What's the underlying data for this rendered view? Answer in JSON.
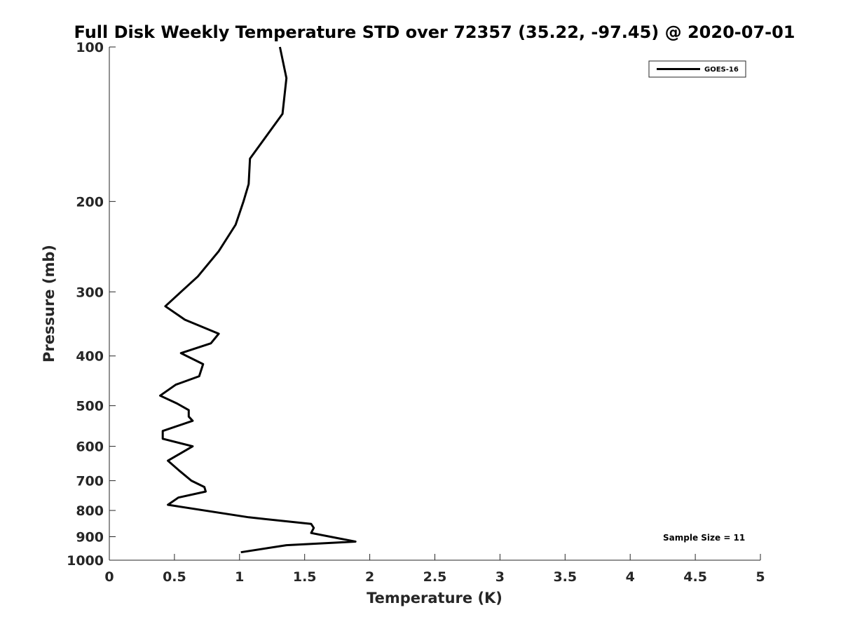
{
  "chart_data": {
    "type": "line",
    "title": "Full Disk Weekly Temperature STD over 72357 (35.22, -97.45) @ 2020-07-01",
    "xlabel": "Temperature (K)",
    "ylabel": "Pressure (mb)",
    "xlim": [
      0,
      5
    ],
    "ylim": [
      1000,
      100
    ],
    "yscale": "log",
    "xticks": [
      0,
      0.5,
      1,
      1.5,
      2,
      2.5,
      3,
      3.5,
      4,
      4.5,
      5
    ],
    "xtick_labels": [
      "0",
      "0.5",
      "1",
      "1.5",
      "2",
      "2.5",
      "3",
      "3.5",
      "4",
      "4.5",
      "5"
    ],
    "yticks": [
      100,
      200,
      300,
      400,
      500,
      600,
      700,
      800,
      900,
      1000
    ],
    "ytick_labels": [
      "100",
      "200",
      "300",
      "400",
      "500",
      "600",
      "700",
      "800",
      "900",
      "1000"
    ],
    "legend": {
      "location": "top-right",
      "entries": [
        "GOES-16"
      ]
    },
    "annotation": "Sample Size = 11",
    "series": [
      {
        "name": "GOES-16",
        "color": "#000000",
        "points": [
          {
            "x": 1.31,
            "p": 100
          },
          {
            "x": 1.36,
            "p": 115
          },
          {
            "x": 1.33,
            "p": 135
          },
          {
            "x": 1.08,
            "p": 165
          },
          {
            "x": 1.07,
            "p": 185
          },
          {
            "x": 1.03,
            "p": 200
          },
          {
            "x": 0.97,
            "p": 222
          },
          {
            "x": 0.84,
            "p": 250
          },
          {
            "x": 0.68,
            "p": 280
          },
          {
            "x": 0.55,
            "p": 300
          },
          {
            "x": 0.43,
            "p": 320
          },
          {
            "x": 0.58,
            "p": 340
          },
          {
            "x": 0.84,
            "p": 362
          },
          {
            "x": 0.78,
            "p": 378
          },
          {
            "x": 0.55,
            "p": 395
          },
          {
            "x": 0.72,
            "p": 415
          },
          {
            "x": 0.69,
            "p": 438
          },
          {
            "x": 0.51,
            "p": 455
          },
          {
            "x": 0.39,
            "p": 478
          },
          {
            "x": 0.52,
            "p": 495
          },
          {
            "x": 0.61,
            "p": 510
          },
          {
            "x": 0.61,
            "p": 525
          },
          {
            "x": 0.64,
            "p": 535
          },
          {
            "x": 0.41,
            "p": 560
          },
          {
            "x": 0.41,
            "p": 580
          },
          {
            "x": 0.64,
            "p": 600
          },
          {
            "x": 0.45,
            "p": 640
          },
          {
            "x": 0.54,
            "p": 670
          },
          {
            "x": 0.63,
            "p": 700
          },
          {
            "x": 0.73,
            "p": 720
          },
          {
            "x": 0.74,
            "p": 735
          },
          {
            "x": 0.53,
            "p": 755
          },
          {
            "x": 0.45,
            "p": 780
          },
          {
            "x": 1.07,
            "p": 825
          },
          {
            "x": 1.55,
            "p": 850
          },
          {
            "x": 1.57,
            "p": 865
          },
          {
            "x": 1.55,
            "p": 885
          },
          {
            "x": 1.89,
            "p": 920
          },
          {
            "x": 1.36,
            "p": 935
          },
          {
            "x": 1.01,
            "p": 965
          }
        ]
      }
    ]
  }
}
